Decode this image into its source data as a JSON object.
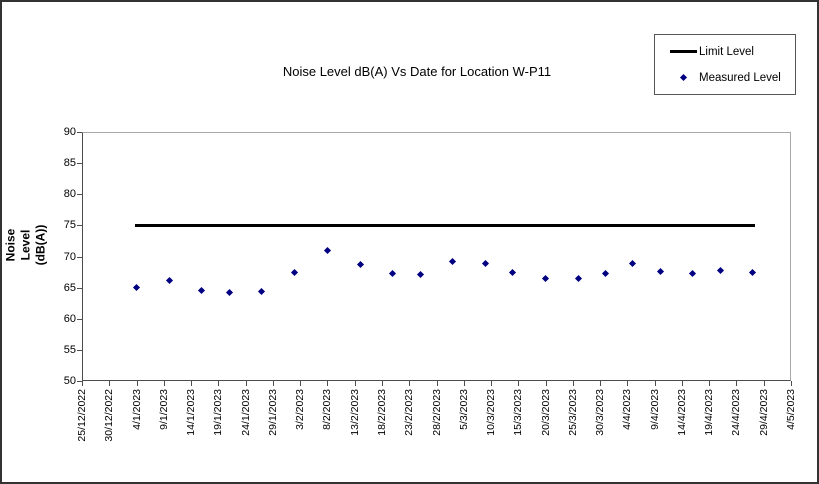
{
  "chart_data": {
    "type": "scatter",
    "title": "Noise Level dB(A) Vs Date for Location W-P11",
    "xlabel": "",
    "ylabel": "Noise Level\n(dB(A))",
    "ylim": [
      50,
      90
    ],
    "y_tick_step": 5,
    "y_ticks": [
      90,
      85,
      80,
      75,
      70,
      65,
      60,
      55,
      50
    ],
    "x_start": "25/12/2022",
    "x_end": "4/5/2023",
    "x_range_days": 130,
    "x_ticks": [
      "25/12/2022",
      "30/12/2022",
      "4/1/2023",
      "9/1/2023",
      "14/1/2023",
      "19/1/2023",
      "24/1/2023",
      "29/1/2023",
      "3/2/2023",
      "8/2/2023",
      "13/2/2023",
      "18/2/2023",
      "23/2/2023",
      "28/2/2023",
      "5/3/2023",
      "10/3/2023",
      "15/3/2023",
      "20/3/2023",
      "25/3/2023",
      "30/3/2023",
      "4/4/2023",
      "9/4/2023",
      "14/4/2023",
      "19/4/2023",
      "24/4/2023",
      "29/4/2023",
      "4/5/2023"
    ],
    "grid": false,
    "legend_position": "top-right",
    "series": [
      {
        "name": "Limit Level",
        "type": "line",
        "color": "#000000",
        "value": 75,
        "start": "4/1/2023",
        "end": "27/4/2023"
      },
      {
        "name": "Measured Level",
        "type": "scatter",
        "marker": "diamond",
        "color": "#000080",
        "points": [
          {
            "date": "4/1/2023",
            "value": 65.1
          },
          {
            "date": "10/1/2023",
            "value": 66.1
          },
          {
            "date": "16/1/2023",
            "value": 64.6
          },
          {
            "date": "21/1/2023",
            "value": 64.2
          },
          {
            "date": "27/1/2023",
            "value": 64.3
          },
          {
            "date": "2/2/2023",
            "value": 67.4
          },
          {
            "date": "8/2/2023",
            "value": 71.0
          },
          {
            "date": "14/2/2023",
            "value": 68.7
          },
          {
            "date": "20/2/2023",
            "value": 67.2
          },
          {
            "date": "25/2/2023",
            "value": 67.1
          },
          {
            "date": "3/3/2023",
            "value": 69.2
          },
          {
            "date": "9/3/2023",
            "value": 68.8
          },
          {
            "date": "14/3/2023",
            "value": 67.4
          },
          {
            "date": "20/3/2023",
            "value": 66.4
          },
          {
            "date": "26/3/2023",
            "value": 66.5
          },
          {
            "date": "31/3/2023",
            "value": 67.2
          },
          {
            "date": "5/4/2023",
            "value": 68.8
          },
          {
            "date": "10/4/2023",
            "value": 67.6
          },
          {
            "date": "16/4/2023",
            "value": 67.3
          },
          {
            "date": "21/4/2023",
            "value": 67.7
          },
          {
            "date": "27/4/2023",
            "value": 67.5
          }
        ]
      }
    ]
  }
}
